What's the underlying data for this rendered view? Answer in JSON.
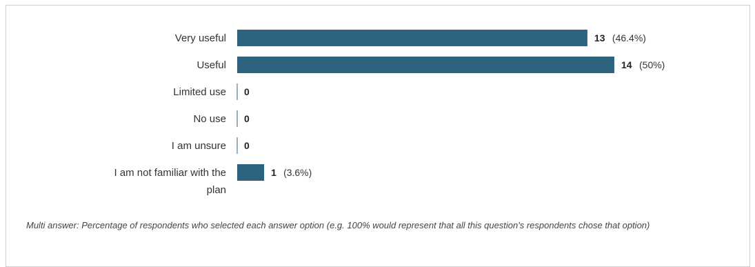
{
  "chart_data": {
    "type": "bar",
    "orientation": "horizontal",
    "categories": [
      "Very useful",
      "Useful",
      "Limited use",
      "No use",
      "I am unsure",
      "I am not familiar with the plan"
    ],
    "values": [
      13,
      14,
      0,
      0,
      0,
      1
    ],
    "percent_labels": [
      "(46.4%)",
      "(50%)",
      "",
      "",
      "",
      "(3.6%)"
    ],
    "xlim": [
      0,
      14
    ],
    "bar_color": "#2e6380",
    "grid": false,
    "title": "",
    "xlabel": "",
    "ylabel": ""
  },
  "footnote": "Multi answer: Percentage of respondents who selected each answer option (e.g. 100% would represent that all this question's respondents chose that option)"
}
